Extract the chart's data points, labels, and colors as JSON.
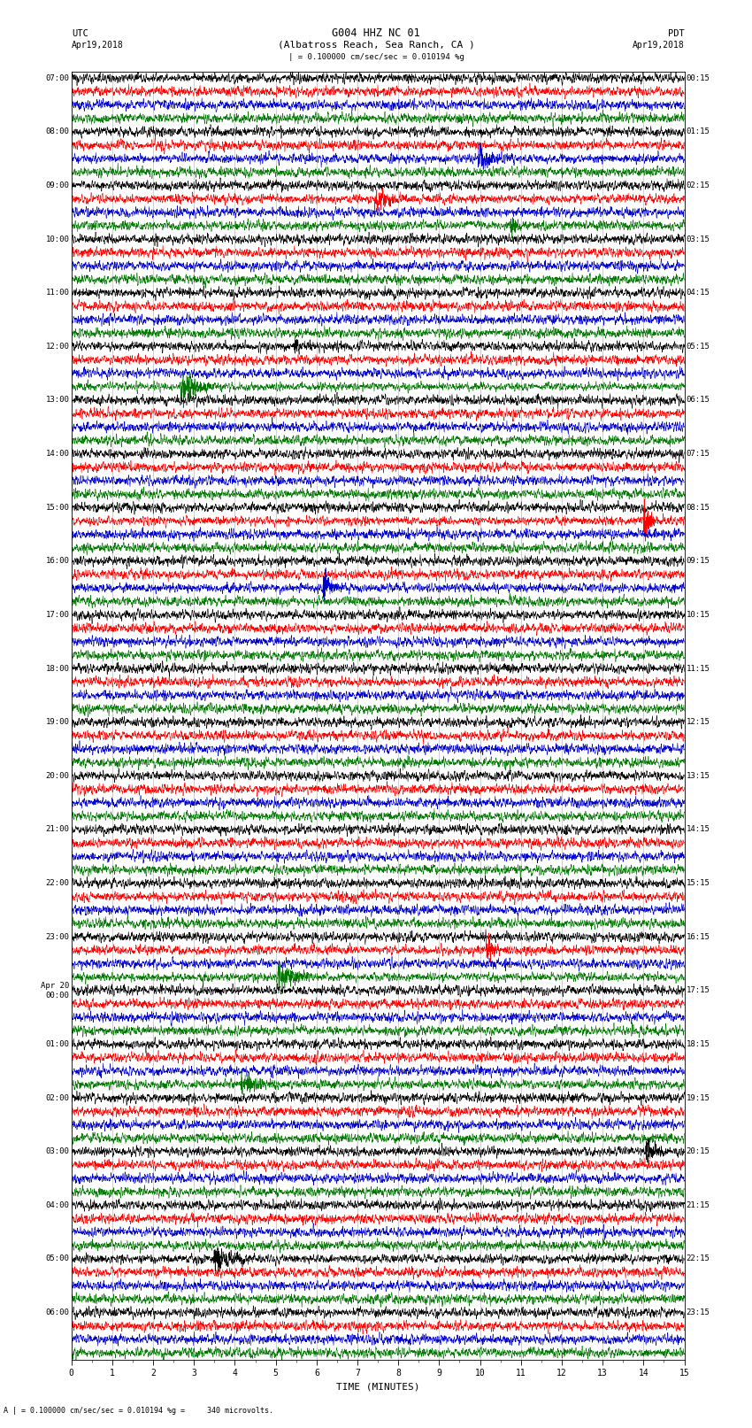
{
  "title_line1": "G004 HHZ NC 01",
  "title_line2": "(Albatross Reach, Sea Ranch, CA )",
  "scale_label": "| = 0.100000 cm/sec/sec = 0.010194 %g",
  "footer_label": "A | = 0.100000 cm/sec/sec = 0.010194 %g =     340 microvolts.",
  "xlabel": "TIME (MINUTES)",
  "xlim": [
    0,
    15
  ],
  "xticks": [
    0,
    1,
    2,
    3,
    4,
    5,
    6,
    7,
    8,
    9,
    10,
    11,
    12,
    13,
    14,
    15
  ],
  "bg_color": "#ffffff",
  "trace_colors": [
    "#000000",
    "#ff0000",
    "#0000cc",
    "#007700"
  ],
  "num_hour_groups": 24,
  "traces_per_group": 4,
  "fig_width": 8.5,
  "fig_height": 16.13,
  "hour_labels_left": [
    "07:00",
    "08:00",
    "09:00",
    "10:00",
    "11:00",
    "12:00",
    "13:00",
    "14:00",
    "15:00",
    "16:00",
    "17:00",
    "18:00",
    "19:00",
    "20:00",
    "21:00",
    "22:00",
    "23:00",
    "Apr 20\n00:00",
    "01:00",
    "02:00",
    "03:00",
    "04:00",
    "05:00",
    "06:00"
  ],
  "hour_labels_right": [
    "00:15",
    "01:15",
    "02:15",
    "03:15",
    "04:15",
    "05:15",
    "06:15",
    "07:15",
    "08:15",
    "09:15",
    "10:15",
    "11:15",
    "12:15",
    "13:15",
    "14:15",
    "15:15",
    "16:15",
    "17:15",
    "18:15",
    "19:15",
    "20:15",
    "21:15",
    "22:15",
    "23:15"
  ]
}
